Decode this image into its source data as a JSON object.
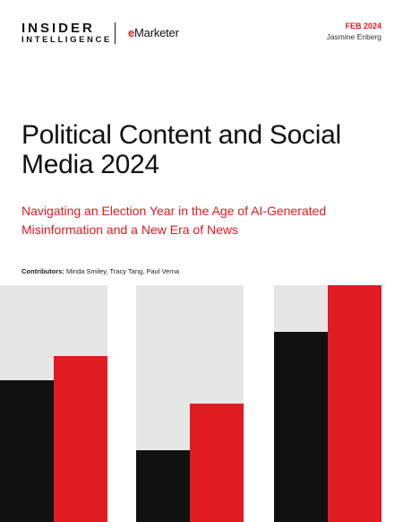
{
  "header": {
    "brand_line1": "INSIDER",
    "brand_line2": "INTELLIGENCE",
    "partner_mark": "e",
    "partner_rest": "Marketer",
    "date": "FEB 2024",
    "author": "Jasmine Enberg"
  },
  "title": "Political Content and Social Media 2024",
  "subtitle": "Navigating an Election Year in the Age of AI-Generated Misinformation and a New Era of News",
  "contributors": {
    "label": "Contributors:",
    "names": "Minda Smiley, Tracy Tang, Paul Verna"
  },
  "colors": {
    "accent": "#e01b22",
    "dark": "#111111",
    "panel": "#e6e6e6"
  }
}
